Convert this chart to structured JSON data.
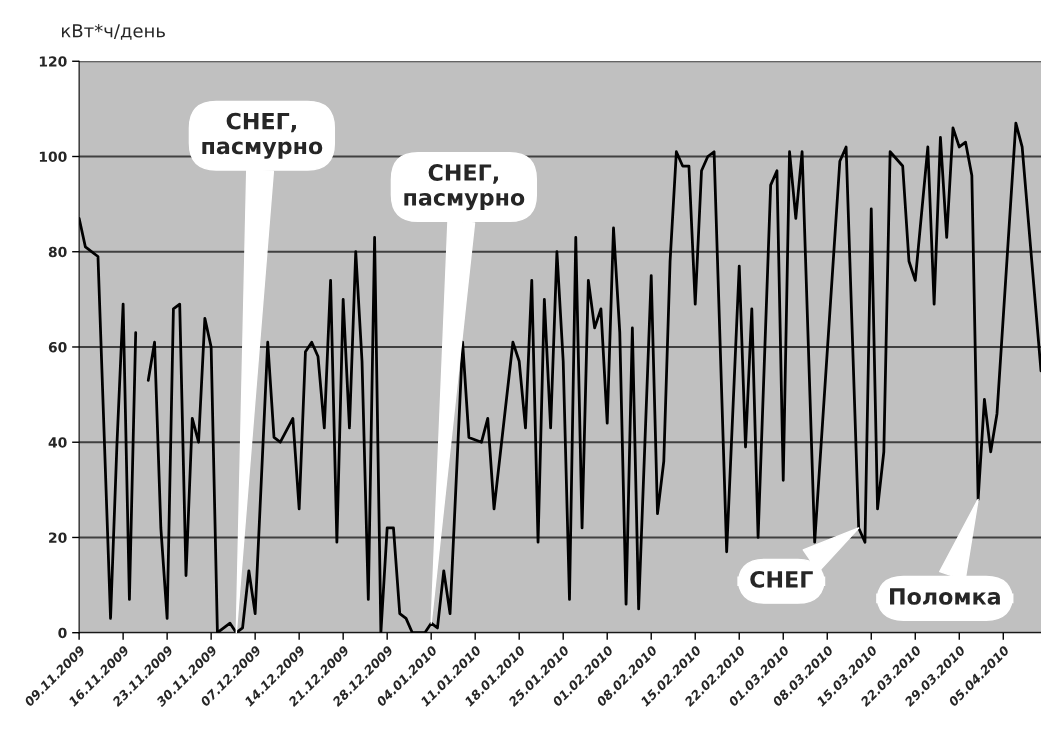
{
  "chart_data": {
    "type": "line",
    "ylabel": "кВт*ч/день",
    "x": [
      "2009-11-09",
      "2009-11-10",
      "2009-11-12",
      "2009-11-14",
      "2009-11-15",
      "2009-11-16",
      "2009-11-17",
      "2009-11-18",
      "2009-11-19",
      "2009-11-20",
      "2009-11-21",
      "2009-11-22",
      "2009-11-23",
      "2009-11-24",
      "2009-11-25",
      "2009-11-26",
      "2009-11-27",
      "2009-11-28",
      "2009-11-29",
      "2009-11-30",
      "2009-12-01",
      "2009-12-03",
      "2009-12-04",
      "2009-12-05",
      "2009-12-06",
      "2009-12-07",
      "2009-12-09",
      "2009-12-10",
      "2009-12-11",
      "2009-12-13",
      "2009-12-14",
      "2009-12-15",
      "2009-12-16",
      "2009-12-17",
      "2009-12-18",
      "2009-12-19",
      "2009-12-20",
      "2009-12-21",
      "2009-12-22",
      "2009-12-23",
      "2009-12-24",
      "2009-12-25",
      "2009-12-26",
      "2009-12-27",
      "2009-12-28",
      "2009-12-29",
      "2009-12-30",
      "2009-12-31",
      "2010-01-01",
      "2010-01-03",
      "2010-01-04",
      "2010-01-05",
      "2010-01-06",
      "2010-01-07",
      "2010-01-09",
      "2010-01-10",
      "2010-01-12",
      "2010-01-13",
      "2010-01-14",
      "2010-01-17",
      "2010-01-18",
      "2010-01-19",
      "2010-01-20",
      "2010-01-21",
      "2010-01-22",
      "2010-01-23",
      "2010-01-24",
      "2010-01-25",
      "2010-01-26",
      "2010-01-27",
      "2010-01-28",
      "2010-01-29",
      "2010-01-30",
      "2010-01-31",
      "2010-02-01",
      "2010-02-02",
      "2010-02-03",
      "2010-02-04",
      "2010-02-05",
      "2010-02-06",
      "2010-02-08",
      "2010-02-09",
      "2010-02-10",
      "2010-02-11",
      "2010-02-12",
      "2010-02-13",
      "2010-02-14",
      "2010-02-15",
      "2010-02-16",
      "2010-02-17",
      "2010-02-18",
      "2010-02-20",
      "2010-02-22",
      "2010-02-23",
      "2010-02-24",
      "2010-02-25",
      "2010-02-27",
      "2010-02-28",
      "2010-03-01",
      "2010-03-02",
      "2010-03-03",
      "2010-03-04",
      "2010-03-06",
      "2010-03-10",
      "2010-03-11",
      "2010-03-13",
      "2010-03-14",
      "2010-03-15",
      "2010-03-16",
      "2010-03-17",
      "2010-03-18",
      "2010-03-20",
      "2010-03-21",
      "2010-03-22",
      "2010-03-24",
      "2010-03-25",
      "2010-03-26",
      "2010-03-27",
      "2010-03-28",
      "2010-03-29",
      "2010-03-30",
      "2010-03-31",
      "2010-04-01",
      "2010-04-02",
      "2010-04-03",
      "2010-04-04",
      "2010-04-07",
      "2010-04-08",
      "2010-04-11"
    ],
    "series": [
      {
        "color": "#000000",
        "values": [
          87,
          81,
          79,
          3,
          39,
          69,
          7,
          63,
          null,
          53,
          61,
          22,
          3,
          68,
          69,
          12,
          45,
          40,
          66,
          60,
          0,
          2,
          0,
          1,
          13,
          4,
          61,
          41,
          40,
          45,
          26,
          59,
          61,
          58,
          43,
          74,
          19,
          70,
          43,
          80,
          57,
          7,
          83,
          0,
          22,
          22,
          4,
          3,
          0,
          0,
          2,
          1,
          13,
          4,
          61,
          41,
          40,
          45,
          26,
          61,
          57,
          43,
          74,
          19,
          70,
          43,
          80,
          57,
          7,
          83,
          22,
          74,
          64,
          68,
          44,
          85,
          63,
          6,
          64,
          5,
          75,
          25,
          36,
          78,
          101,
          98,
          98,
          69,
          97,
          100,
          101,
          17,
          77,
          39,
          68,
          20,
          94,
          97,
          32,
          101,
          87,
          101,
          19,
          99,
          102,
          22,
          19,
          89,
          26,
          38,
          101,
          98,
          78,
          74,
          102,
          69,
          104,
          83,
          106,
          102,
          103,
          96,
          28,
          49,
          38,
          46,
          107,
          102,
          55
        ]
      }
    ],
    "xlim": [
      "2009-11-09",
      "2010-04-11"
    ],
    "xticks": [
      {
        "value": "2009-11-09",
        "label": "09.11.2009"
      },
      {
        "value": "2009-11-16",
        "label": "16.11.2009"
      },
      {
        "value": "2009-11-23",
        "label": "23.11.2009"
      },
      {
        "value": "2009-11-30",
        "label": "30.11.2009"
      },
      {
        "value": "2009-12-07",
        "label": "07.12.2009"
      },
      {
        "value": "2009-12-14",
        "label": "14.12.2009"
      },
      {
        "value": "2009-12-21",
        "label": "21.12.2009"
      },
      {
        "value": "2009-12-28",
        "label": "28.12.2009"
      },
      {
        "value": "2010-01-04",
        "label": "04.01.2010"
      },
      {
        "value": "2010-01-11",
        "label": "11.01.2010"
      },
      {
        "value": "2010-01-18",
        "label": "18.01.2010"
      },
      {
        "value": "2010-01-25",
        "label": "25.01.2010"
      },
      {
        "value": "2010-02-01",
        "label": "01.02.2010"
      },
      {
        "value": "2010-02-08",
        "label": "08.02.2010"
      },
      {
        "value": "2010-02-15",
        "label": "15.02.2010"
      },
      {
        "value": "2010-02-22",
        "label": "22.02.2010"
      },
      {
        "value": "2010-03-01",
        "label": "01.03.2010"
      },
      {
        "value": "2010-03-08",
        "label": "08.03.2010"
      },
      {
        "value": "2010-03-15",
        "label": "15.03.2010"
      },
      {
        "value": "2010-03-22",
        "label": "22.03.2010"
      },
      {
        "value": "2010-03-29",
        "label": "29.03.2010"
      },
      {
        "value": "2010-04-05",
        "label": "05.04.2010"
      }
    ],
    "ylim": [
      0,
      120
    ],
    "yticks": [
      0,
      20,
      40,
      60,
      80,
      100,
      120
    ],
    "grid": "y",
    "legend": false,
    "marker": "none",
    "line_style": "solid",
    "annotations": [
      {
        "text": "СНЕГ,\nпасмурно",
        "x": "2009-12-04",
        "y": 0
      },
      {
        "text": "СНЕГ,\nпасмурно",
        "x": "2010-01-04",
        "y": 2
      },
      {
        "text": "СНЕГ",
        "x": "2010-03-13",
        "y": 22
      },
      {
        "text": "Поломка",
        "x": "2010-04-01",
        "y": 28
      }
    ]
  }
}
